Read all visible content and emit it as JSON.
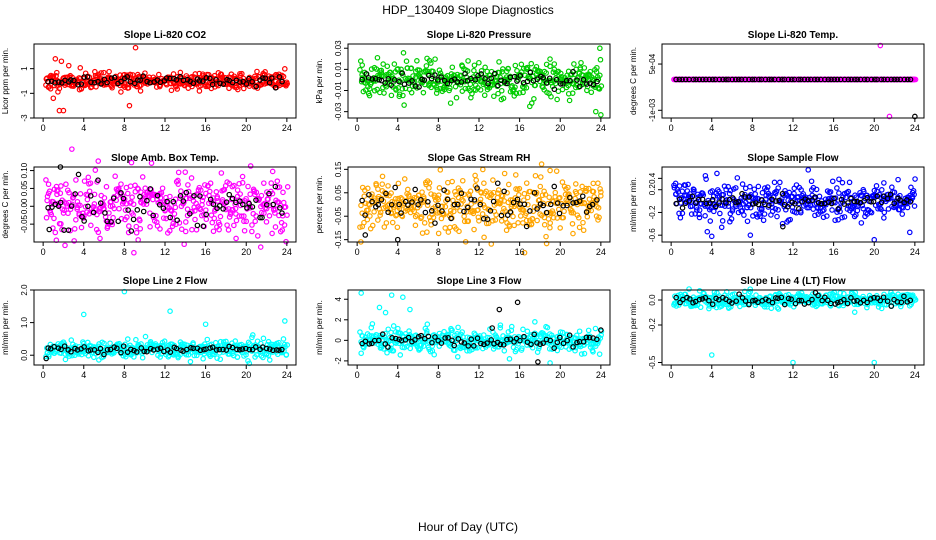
{
  "figure": {
    "title": "HDP_130409  Slope Diagnostics",
    "xlabel": "Hour of Day (UTC)"
  },
  "chart_data": [
    {
      "type": "scatter",
      "title": "Slope Li-820 CO2",
      "ylabel": "Licor ppm per min.",
      "color": "#ff0000",
      "x_ticks": [
        0,
        4,
        8,
        12,
        16,
        20,
        24
      ],
      "y_ticks": [
        -3,
        -1,
        1
      ],
      "y_tick_labels": [
        "-3",
        "-1",
        "1"
      ],
      "xlim": [
        -0.9,
        24.9
      ],
      "ylim": [
        -3.0,
        3.0
      ],
      "scatter_seed": 11,
      "center": 0.0,
      "spread_main": 0.35,
      "spread_black": 0.22,
      "outliers": [
        [
          1.2,
          1.8
        ],
        [
          1.8,
          1.6
        ],
        [
          1.6,
          -2.4
        ],
        [
          2.0,
          -2.4
        ],
        [
          8.5,
          -2.0
        ],
        [
          9.1,
          2.7
        ],
        [
          1.0,
          -1.4
        ]
      ]
    },
    {
      "type": "scatter",
      "title": "Slope Li-820 Pressure",
      "ylabel": "kPa per min.",
      "color": "#00cc00",
      "x_ticks": [
        0,
        4,
        8,
        12,
        16,
        20,
        24
      ],
      "y_ticks": [
        -0.03,
        -0.01,
        0.01,
        0.03
      ],
      "y_tick_labels": [
        "-0.03",
        "-0.01",
        "0.01",
        "0.03"
      ],
      "xlim": [
        -0.9,
        24.9
      ],
      "ylim": [
        -0.036,
        0.034
      ],
      "scatter_seed": 22,
      "center": 0.0,
      "spread_main": 0.008,
      "spread_black": 0.004,
      "outliers": [
        [
          23.9,
          0.03
        ],
        [
          24.0,
          -0.033
        ],
        [
          23.5,
          -0.03
        ],
        [
          17.0,
          -0.025
        ],
        [
          2.0,
          0.021
        ],
        [
          0.5,
          0.014
        ]
      ]
    },
    {
      "type": "scatter",
      "title": "Slope Li-820 Temp.",
      "ylabel": "degrees C per min.",
      "color": "#ff00ff",
      "x_ticks": [
        0,
        4,
        8,
        12,
        16,
        20,
        24
      ],
      "y_ticks": [
        -0.001,
        0.0005
      ],
      "y_tick_labels": [
        "-1e-03",
        "5e-04"
      ],
      "xlim": [
        -0.9,
        24.9
      ],
      "ylim": [
        -0.00125,
        0.00115
      ],
      "scatter_seed": 33,
      "center": 0.0,
      "spread_main": 0.0,
      "spread_black": 0.0,
      "outliers": [
        [
          20.6,
          0.0011
        ],
        [
          21.5,
          -0.0012
        ]
      ],
      "black_outliers": [
        [
          24.0,
          -0.0012
        ]
      ]
    },
    {
      "type": "scatter",
      "title": "Slope Amb. Box Temp.",
      "ylabel": "degrees C per min.",
      "color": "#ff00ff",
      "x_ticks": [
        0,
        4,
        8,
        12,
        16,
        20,
        24
      ],
      "y_ticks": [
        -0.05,
        0.0,
        0.05,
        0.1
      ],
      "y_tick_labels": [
        "-0.05",
        "0.00",
        "0.05",
        "0.10"
      ],
      "xlim": [
        -0.9,
        24.9
      ],
      "ylim": [
        -0.1,
        0.11
      ],
      "scatter_seed": 44,
      "center": 0.005,
      "spread_main": 0.045,
      "spread_black": 0.03,
      "outliers": [
        [
          1.3,
          -0.095
        ],
        [
          5.6,
          -0.09
        ],
        [
          19.0,
          -0.09
        ]
      ],
      "black_outliers": [
        [
          1.7,
          0.11
        ],
        [
          0.6,
          -0.065
        ]
      ]
    },
    {
      "type": "scatter",
      "title": "Slope Gas Stream RH",
      "ylabel": "percent per min.",
      "color": "#ffa500",
      "x_ticks": [
        0,
        4,
        8,
        12,
        16,
        20,
        24
      ],
      "y_ticks": [
        -0.15,
        -0.05,
        0.05,
        0.15
      ],
      "y_tick_labels": [
        "-0.15",
        "-0.05",
        "0.05",
        "0.15"
      ],
      "xlim": [
        -0.9,
        24.9
      ],
      "ylim": [
        -0.16,
        0.16
      ],
      "scatter_seed": 55,
      "center": 0.0,
      "spread_main": 0.06,
      "spread_black": 0.035,
      "outliers": [
        [
          2.5,
          0.12
        ],
        [
          19.0,
          0.145
        ],
        [
          12.5,
          -0.14
        ]
      ],
      "black_outliers": [
        [
          4.0,
          -0.15
        ],
        [
          0.8,
          -0.13
        ]
      ]
    },
    {
      "type": "scatter",
      "title": "Slope Sample Flow",
      "ylabel": "ml/min per min.",
      "color": "#0000ff",
      "x_ticks": [
        0,
        4,
        8,
        12,
        16,
        20,
        24
      ],
      "y_ticks": [
        -0.6,
        -0.2,
        0.2,
        0.4
      ],
      "y_tick_labels": [
        "-0.6",
        "-0.2",
        "0.2",
        "0.4"
      ],
      "xlim": [
        -0.9,
        24.9
      ],
      "ylim": [
        -0.72,
        0.6
      ],
      "scatter_seed": 66,
      "center": 0.0,
      "spread_main": 0.17,
      "spread_black": 0.07,
      "outliers": [
        [
          13.5,
          0.55
        ],
        [
          4.0,
          -0.62
        ],
        [
          7.8,
          -0.6
        ],
        [
          20.0,
          -0.68
        ],
        [
          23.5,
          -0.55
        ]
      ],
      "black_outliers": [
        [
          11.0,
          -0.45
        ]
      ]
    },
    {
      "type": "scatter",
      "title": "Slope Line 2 Flow",
      "ylabel": "ml/min per min.",
      "color": "#00ffff",
      "x_ticks": [
        0,
        4,
        8,
        12,
        16,
        20,
        24
      ],
      "y_ticks": [
        0.0,
        1.0,
        2.0
      ],
      "y_tick_labels": [
        "0.0",
        "1.0",
        "2.0"
      ],
      "xlim": [
        -0.9,
        24.9
      ],
      "ylim": [
        -0.3,
        2.0
      ],
      "scatter_seed": 77,
      "center": 0.18,
      "spread_main": 0.14,
      "spread_black": 0.05,
      "outliers": [
        [
          8.0,
          1.95
        ],
        [
          4.0,
          1.25
        ],
        [
          12.5,
          1.35
        ],
        [
          16.0,
          0.95
        ],
        [
          23.8,
          1.05
        ],
        [
          20.3,
          -0.25
        ]
      ],
      "black_outliers": [
        [
          0.3,
          -0.1
        ]
      ]
    },
    {
      "type": "scatter",
      "title": "Slope Line 3 Flow",
      "ylabel": "ml/min per min.",
      "color": "#00ffff",
      "x_ticks": [
        0,
        4,
        8,
        12,
        16,
        20,
        24
      ],
      "y_ticks": [
        -2,
        0,
        2,
        4
      ],
      "y_tick_labels": [
        "-2",
        "0",
        "2",
        "4"
      ],
      "xlim": [
        -0.9,
        24.9
      ],
      "ylim": [
        -2.4,
        4.9
      ],
      "scatter_seed": 88,
      "center": 0.0,
      "spread_main": 0.55,
      "spread_black": 0.35,
      "outliers": [
        [
          0.4,
          4.6
        ],
        [
          3.4,
          4.4
        ],
        [
          4.5,
          4.2
        ],
        [
          2.2,
          3.2
        ],
        [
          2.8,
          2.7
        ],
        [
          1.5,
          1.6
        ],
        [
          5.2,
          3.0
        ],
        [
          3.6,
          1.4
        ],
        [
          19.0,
          -2.2
        ],
        [
          15.0,
          -1.8
        ],
        [
          17.5,
          1.8
        ]
      ],
      "black_outliers": [
        [
          15.8,
          3.7
        ],
        [
          14.0,
          3.0
        ],
        [
          13.3,
          1.2
        ],
        [
          17.8,
          -2.1
        ],
        [
          24.0,
          1.0
        ]
      ]
    },
    {
      "type": "scatter",
      "title": "Slope Line 4 (LT) Flow",
      "ylabel": "ml/min per min.",
      "color": "#00ffff",
      "x_ticks": [
        0,
        4,
        8,
        12,
        16,
        20,
        24
      ],
      "y_ticks": [
        -0.5,
        -0.2,
        0.0
      ],
      "y_tick_labels": [
        "-0.5",
        "-0.2",
        "0.0"
      ],
      "xlim": [
        -0.9,
        24.9
      ],
      "ylim": [
        -0.52,
        0.08
      ],
      "scatter_seed": 99,
      "center": 0.0,
      "spread_main": 0.03,
      "spread_black": 0.02,
      "outliers": [
        [
          4.0,
          -0.44
        ],
        [
          12.0,
          -0.5
        ],
        [
          20.0,
          -0.5
        ]
      ]
    }
  ]
}
